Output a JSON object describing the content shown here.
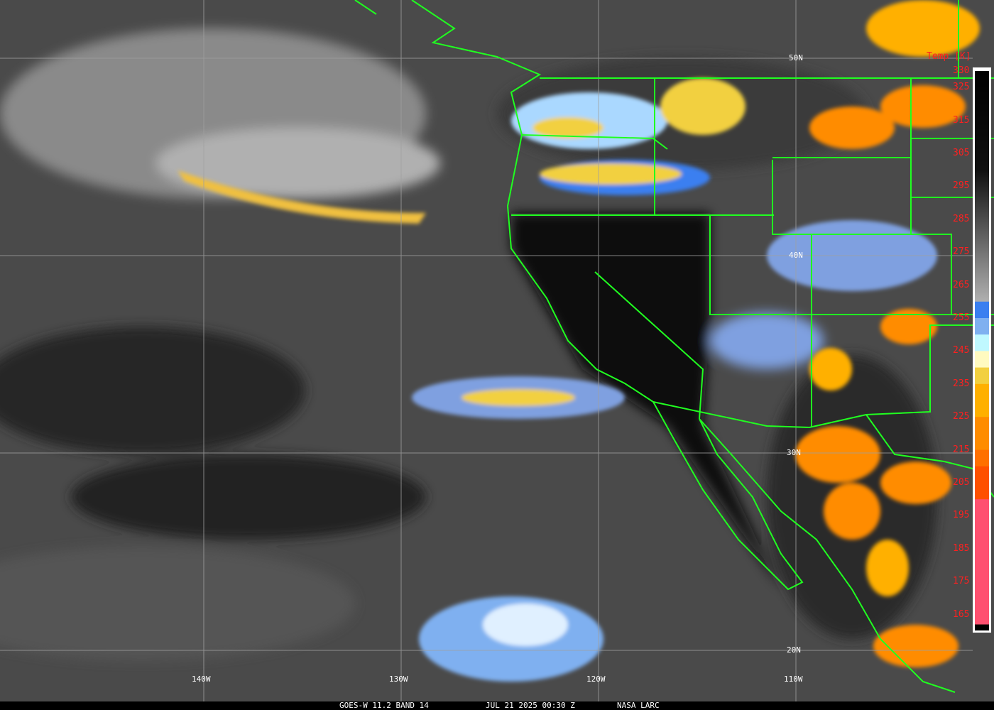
{
  "footer": {
    "satellite": "GOES-W 11.2 BAND 14",
    "datetime": "JUL 21 2025 00:30 Z",
    "credit": "NASA LARC"
  },
  "grid": {
    "lon_labels": [
      "140W",
      "130W",
      "120W",
      "110W"
    ],
    "lat_labels": [
      "50N",
      "40N",
      "30N",
      "20N"
    ],
    "color": "#a0a0a0"
  },
  "colorbar": {
    "title": "Temp [K]",
    "ticks": [
      "330",
      "325",
      "315",
      "305",
      "295",
      "285",
      "275",
      "265",
      "255",
      "245",
      "235",
      "225",
      "215",
      "205",
      "195",
      "185",
      "175",
      "165"
    ],
    "stops": [
      {
        "k": 330,
        "c": "#000000"
      },
      {
        "k": 300,
        "c": "#101010"
      },
      {
        "k": 260,
        "c": "#b0b0b0"
      },
      {
        "k": 260,
        "c": "#3a7ff0"
      },
      {
        "k": 255,
        "c": "#7fb0f0"
      },
      {
        "k": 250,
        "c": "#c0f8ff"
      },
      {
        "k": 245,
        "c": "#fffac0"
      },
      {
        "k": 240,
        "c": "#f2d040"
      },
      {
        "k": 235,
        "c": "#ffb000"
      },
      {
        "k": 225,
        "c": "#ff8c00"
      },
      {
        "k": 215,
        "c": "#ff7000"
      },
      {
        "k": 210,
        "c": "#ff5000"
      },
      {
        "k": 200,
        "c": "#ff5070"
      },
      {
        "k": 162,
        "c": "#ff5070"
      },
      {
        "k": 162,
        "c": "#000000"
      }
    ],
    "label_color": "#ff2020"
  },
  "boundary_color": "#20ff20"
}
